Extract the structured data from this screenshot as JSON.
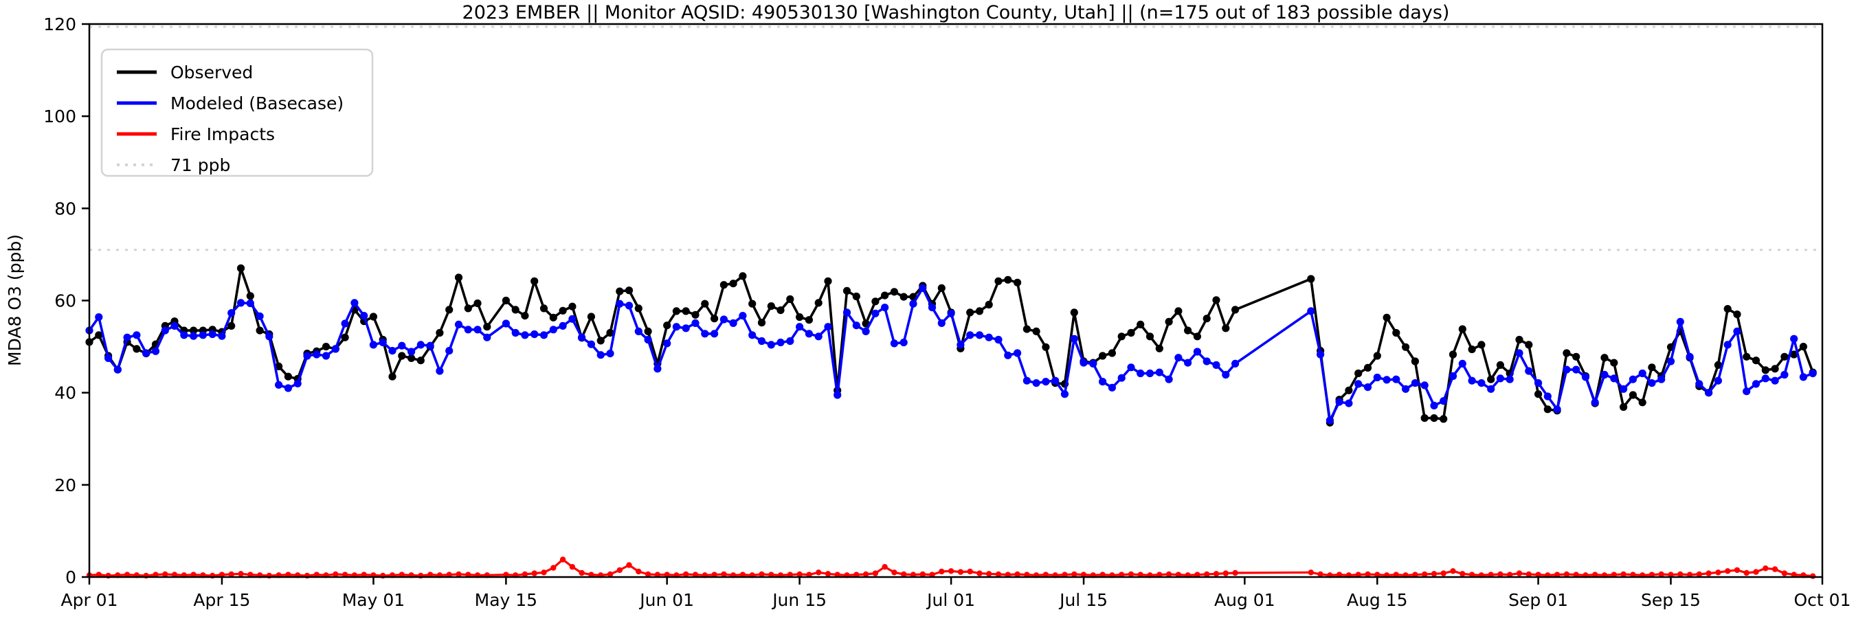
{
  "title": "2023 EMBER || Monitor AQSID: 490530130 [Washington County, Utah] || (n=175 out of 183 possible days)",
  "y_axis": {
    "label": "MDA8 O3 (ppb)",
    "ticks": [
      0,
      20,
      40,
      60,
      80,
      100,
      120
    ],
    "min": 0,
    "max": 120
  },
  "x_axis": {
    "ticks": [
      {
        "label": "Apr 01",
        "day": 0
      },
      {
        "label": "Apr 15",
        "day": 14
      },
      {
        "label": "May 01",
        "day": 30
      },
      {
        "label": "May 15",
        "day": 44
      },
      {
        "label": "Jun 01",
        "day": 61
      },
      {
        "label": "Jun 15",
        "day": 75
      },
      {
        "label": "Jul 01",
        "day": 91
      },
      {
        "label": "Jul 15",
        "day": 105
      },
      {
        "label": "Aug 01",
        "day": 122
      },
      {
        "label": "Aug 15",
        "day": 136
      },
      {
        "label": "Sep 01",
        "day": 153
      },
      {
        "label": "Sep 15",
        "day": 167
      },
      {
        "label": "Oct 01",
        "day": 183
      }
    ]
  },
  "legend": {
    "items": [
      {
        "label": "Observed",
        "color": "#000000",
        "style": "solid"
      },
      {
        "label": "Modeled (Basecase)",
        "color": "#0000ff",
        "style": "solid"
      },
      {
        "label": "Fire Impacts",
        "color": "#ff0000",
        "style": "solid"
      },
      {
        "label": "71 ppb",
        "color": "#d3d3d3",
        "style": "dotted"
      }
    ]
  },
  "threshold": {
    "label": "71 ppb",
    "value": 71,
    "color": "#d3d3d3"
  },
  "chart_data": {
    "type": "line",
    "title": "2023 EMBER || Monitor AQSID: 490530130 [Washington County, Utah] || (n=175 out of 183 possible days)",
    "xlabel": "",
    "ylabel": "MDA8 O3 (ppb)",
    "ylim": [
      0,
      120
    ],
    "x_start": "Apr 01",
    "x_end": "Oct 01",
    "n_label": "n=175 out of 183 possible days",
    "grid": false,
    "legend_position": "upper-left",
    "months": [
      [
        "Apr",
        30
      ],
      [
        "May",
        31
      ],
      [
        "Jun",
        30
      ],
      [
        "Jul",
        31
      ],
      [
        "Aug",
        31
      ],
      [
        "Sep",
        30
      ]
    ],
    "missing_days": [
      "May 14",
      "Aug 01",
      "Aug 02",
      "Aug 03",
      "Aug 04",
      "Aug 05",
      "Aug 06",
      "Aug 07"
    ],
    "dotted_lines": [
      71,
      120
    ],
    "series": [
      {
        "name": "Observed",
        "color": "#000000",
        "values": [
          51,
          52.5,
          48,
          45,
          51,
          49.5,
          48.5,
          50.5,
          54.5,
          55.5,
          53.5,
          53.5,
          53.5,
          53.7,
          53.2,
          54.5,
          67,
          61,
          53.5,
          52.7,
          45.7,
          43.5,
          43,
          48.5,
          49,
          50,
          49.5,
          52,
          58,
          55.5,
          56.5,
          51.5,
          43.5,
          48,
          47.5,
          47,
          50,
          53,
          58,
          65,
          58.3,
          59.4,
          54.3,
          null,
          60,
          58,
          56.7,
          64.2,
          58.3,
          56.3,
          57.8,
          58.7,
          51.9,
          56.5,
          51.3,
          53,
          62,
          62.2,
          58.3,
          53.3,
          46.3,
          54.6,
          57.7,
          57.7,
          56.9,
          59.3,
          56.1,
          63.4,
          63.7,
          65.3,
          59.3,
          55.2,
          58.8,
          57.9,
          60.3,
          56.4,
          55.8,
          59.5,
          64.2,
          40.5,
          62.1,
          60.9,
          55,
          59.8,
          61.1,
          61.9,
          60.8,
          60.8,
          63.2,
          59.3,
          62.7,
          57.4,
          49.6,
          57.4,
          57.7,
          59.1,
          64.2,
          64.5,
          63.9,
          53.8,
          53.3,
          49.9,
          42.1,
          41.9,
          57.4,
          46.8,
          46.5,
          48,
          48.6,
          52.2,
          53,
          54.8,
          52.2,
          49.6,
          55.4,
          57.7,
          53.5,
          52.2,
          56.1,
          60.1,
          54,
          58,
          null,
          null,
          null,
          null,
          null,
          null,
          null,
          64.7,
          49.1,
          33.5,
          38.5,
          40.5,
          44.2,
          45.4,
          48,
          56.3,
          53,
          49.9,
          46.8,
          34.5,
          34.5,
          34.3,
          48.3,
          53.8,
          49.4,
          50.4,
          42.9,
          46,
          44.2,
          51.5,
          50.4,
          39.7,
          36.4,
          36.1,
          48.6,
          47.8,
          43.6,
          37.7,
          47.6,
          46.5,
          36.9,
          39.5,
          37.9,
          45.5,
          43.6,
          49.9,
          53.3,
          47.6,
          41.4,
          40,
          46,
          58.2,
          57,
          47.8,
          47,
          44.9,
          45.2,
          47.8,
          48.3,
          50,
          44.4
        ]
      },
      {
        "name": "Modeled (Basecase)",
        "color": "#0000ff",
        "values": [
          53.5,
          56.4,
          47.5,
          45,
          52,
          52.5,
          48.6,
          49,
          53.5,
          54.5,
          52.5,
          52.3,
          52.5,
          52.7,
          52.3,
          57.3,
          59.5,
          59.4,
          56.6,
          52.2,
          41.7,
          41,
          42,
          48,
          48.3,
          48,
          49.5,
          55,
          59.5,
          56.7,
          50.4,
          50.9,
          49.1,
          50.2,
          48.9,
          50.4,
          50.2,
          44.7,
          49.1,
          54.8,
          53.7,
          53.7,
          52,
          null,
          55,
          53,
          52.5,
          52.7,
          52.5,
          53.7,
          54.5,
          56,
          52,
          50.5,
          48.2,
          48.5,
          59.3,
          58.9,
          53.3,
          51.5,
          45.2,
          50.7,
          54.3,
          54,
          55.1,
          52.8,
          52.8,
          55.9,
          55.1,
          56.7,
          52.5,
          51.2,
          50.4,
          50.9,
          51.2,
          54.3,
          52.8,
          52.2,
          54.3,
          39.5,
          57.4,
          54.6,
          53.3,
          57.2,
          58.5,
          50.7,
          50.9,
          59.3,
          62.7,
          58.5,
          55.1,
          57.2,
          50.4,
          52.5,
          52.5,
          52,
          51.5,
          48.1,
          48.6,
          42.6,
          42.1,
          42.4,
          42.6,
          39.7,
          51.7,
          46.5,
          46.3,
          42.4,
          41.1,
          43.2,
          45.5,
          44.2,
          44.2,
          44.4,
          42.9,
          47.6,
          46.5,
          48.9,
          46.8,
          46,
          43.9,
          46.3,
          null,
          null,
          null,
          null,
          null,
          null,
          null,
          57.7,
          48.3,
          34,
          38,
          37.7,
          41.9,
          41.2,
          43.3,
          42.8,
          42.9,
          40.8,
          42.1,
          41.6,
          37.2,
          38.2,
          43.6,
          46.3,
          42.6,
          42.1,
          40.8,
          43.1,
          42.9,
          48.6,
          44.7,
          42.1,
          39.2,
          36.4,
          45,
          45,
          43.4,
          37.9,
          43.9,
          43.1,
          40.8,
          42.9,
          44.2,
          42.1,
          42.9,
          46.8,
          55.4,
          47.8,
          41.9,
          40,
          42.6,
          50.4,
          53.3,
          40.3,
          41.9,
          43.1,
          42.6,
          43.9,
          51.7,
          43.4,
          44.2
        ]
      },
      {
        "name": "Fire Impacts",
        "color": "#ff0000",
        "values": [
          0.4,
          0.5,
          0.3,
          0.4,
          0.5,
          0.4,
          0.3,
          0.5,
          0.6,
          0.5,
          0.4,
          0.5,
          0.4,
          0.3,
          0.5,
          0.6,
          0.7,
          0.5,
          0.4,
          0.3,
          0.4,
          0.5,
          0.4,
          0.3,
          0.5,
          0.4,
          0.6,
          0.5,
          0.4,
          0.5,
          0.4,
          0.3,
          0.4,
          0.5,
          0.4,
          0.3,
          0.5,
          0.4,
          0.5,
          0.6,
          0.5,
          0.4,
          0.4,
          null,
          0.5,
          0.4,
          0.6,
          0.8,
          1.0,
          2.0,
          3.8,
          2.2,
          0.9,
          0.5,
          0.4,
          0.6,
          1.5,
          2.6,
          1.2,
          0.6,
          0.5,
          0.5,
          0.4,
          0.6,
          0.5,
          0.4,
          0.5,
          0.6,
          0.4,
          0.5,
          0.4,
          0.6,
          0.5,
          0.4,
          0.5,
          0.6,
          0.5,
          1.0,
          0.7,
          0.5,
          0.4,
          0.5,
          0.6,
          0.8,
          2.2,
          1.0,
          0.6,
          0.5,
          0.6,
          0.5,
          1.2,
          1.3,
          1.1,
          1.2,
          0.8,
          0.7,
          0.6,
          0.5,
          0.6,
          0.5,
          0.4,
          0.5,
          0.4,
          0.5,
          0.6,
          0.5,
          0.4,
          0.5,
          0.4,
          0.5,
          0.6,
          0.5,
          0.4,
          0.5,
          0.6,
          0.5,
          0.4,
          0.5,
          0.6,
          0.7,
          0.8,
          0.9,
          null,
          null,
          null,
          null,
          null,
          null,
          null,
          1.0,
          0.6,
          0.4,
          0.5,
          0.4,
          0.5,
          0.6,
          0.5,
          0.4,
          0.5,
          0.4,
          0.5,
          0.6,
          0.7,
          0.8,
          1.3,
          0.7,
          0.5,
          0.4,
          0.5,
          0.6,
          0.5,
          0.8,
          0.6,
          0.5,
          0.4,
          0.5,
          0.6,
          0.5,
          0.4,
          0.5,
          0.4,
          0.5,
          0.6,
          0.5,
          0.4,
          0.5,
          0.6,
          0.5,
          0.6,
          0.5,
          0.6,
          0.8,
          1.0,
          1.3,
          1.5,
          0.9,
          1.1,
          1.9,
          1.7,
          0.8,
          0.5,
          0.4,
          0.2
        ]
      }
    ]
  }
}
